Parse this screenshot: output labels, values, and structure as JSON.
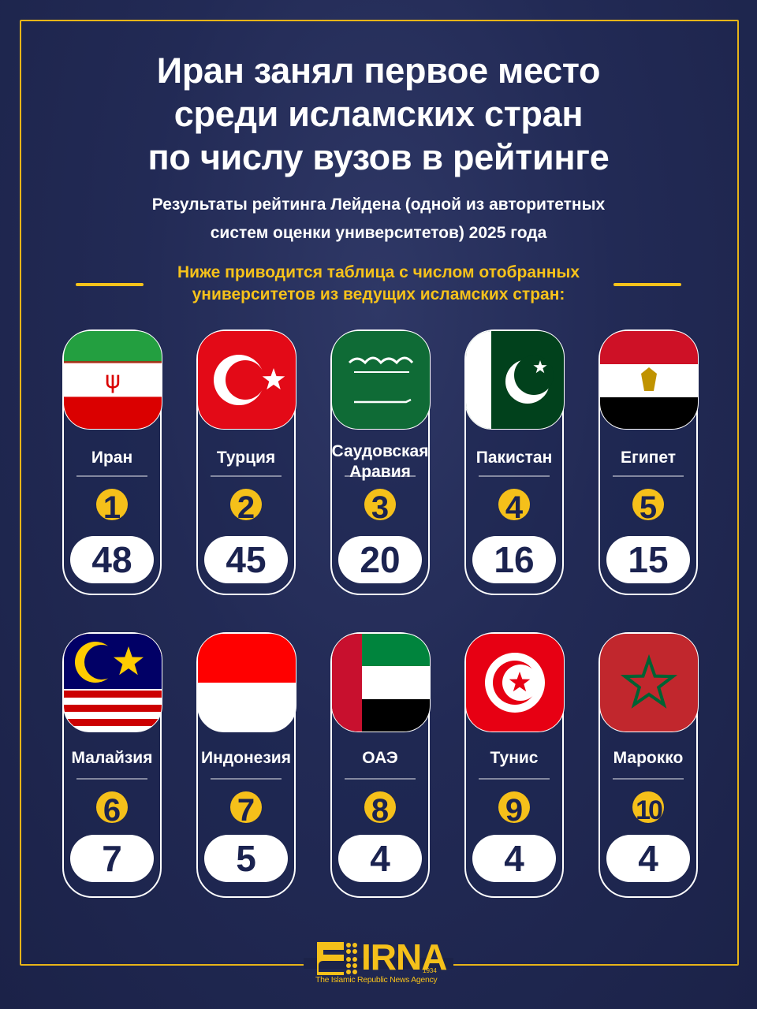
{
  "title": [
    "Иран занял первое место",
    "среди исламских стран",
    "по числу вузов в рейтинге"
  ],
  "subtitle": [
    "Результаты рейтинга Лейдена (одной из авторитетных",
    "систем оценки университетов) 2025 года"
  ],
  "intro": [
    "Ниже приводится таблица с числом отобранных",
    "университетов из ведущих исламских стран:"
  ],
  "colors": {
    "background": "#222a55",
    "accent": "#f5c01a",
    "count_text": "#1b2350"
  },
  "countries": [
    {
      "name": "Иран",
      "rank": "1",
      "count": "48",
      "flag": "iran"
    },
    {
      "name": "Турция",
      "rank": "2",
      "count": "45",
      "flag": "turkey"
    },
    {
      "name": "Саудовская Аравия",
      "rank": "3",
      "count": "20",
      "flag": "saudi-arabia"
    },
    {
      "name": "Пакистан",
      "rank": "4",
      "count": "16",
      "flag": "pakistan"
    },
    {
      "name": "Египет",
      "rank": "5",
      "count": "15",
      "flag": "egypt"
    },
    {
      "name": "Малайзия",
      "rank": "6",
      "count": "7",
      "flag": "malaysia"
    },
    {
      "name": "Индонезия",
      "rank": "7",
      "count": "5",
      "flag": "indonesia"
    },
    {
      "name": "ОАЭ",
      "rank": "8",
      "count": "4",
      "flag": "uae"
    },
    {
      "name": "Тунис",
      "rank": "9",
      "count": "4",
      "flag": "tunisia"
    },
    {
      "name": "Марокко",
      "rank": "10",
      "count": "4",
      "flag": "morocco"
    }
  ],
  "logo": {
    "word": "IRNA",
    "year": "1934",
    "tagline": "The Islamic Republic News Agency"
  }
}
